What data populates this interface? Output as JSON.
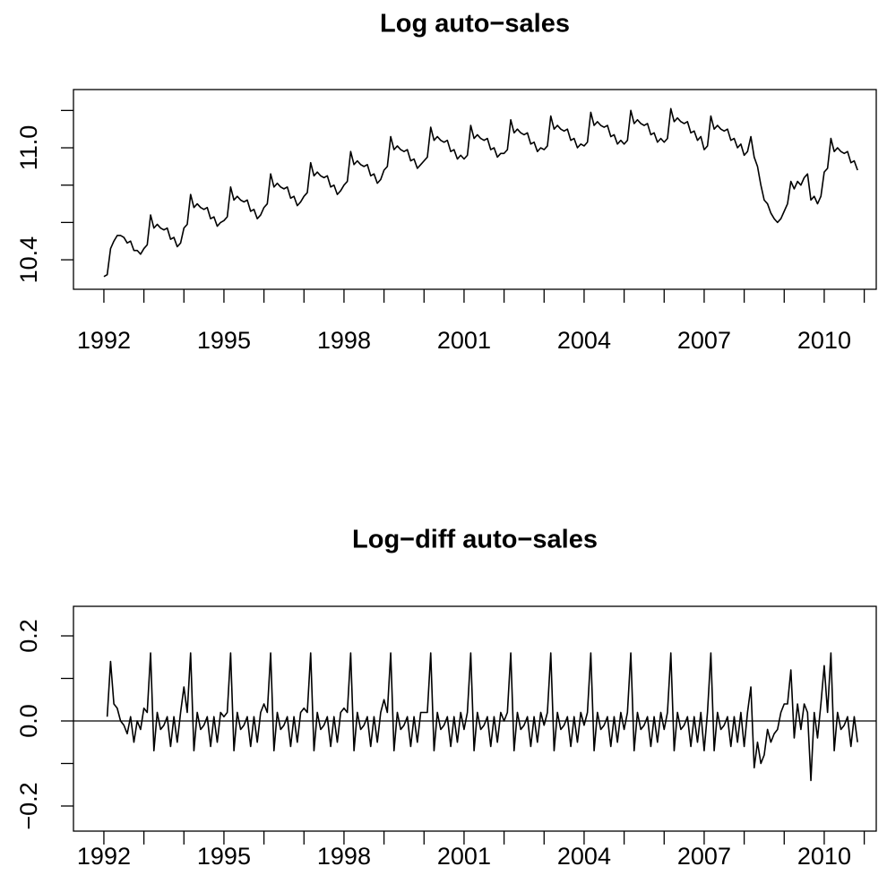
{
  "chart_data": [
    {
      "type": "line",
      "title": "Log auto−sales",
      "color": "#000000",
      "xlim": [
        1991.24,
        2011.3
      ],
      "xticks": [
        1992,
        1995,
        1998,
        2001,
        2004,
        2007,
        2010
      ],
      "xminorticks": [
        1993,
        1994,
        1996,
        1997,
        1999,
        2000,
        2002,
        2003,
        2005,
        2006,
        2008,
        2009,
        2011
      ],
      "ylim": [
        10.242,
        11.312
      ],
      "yticks": [
        {
          "value": 10.4,
          "label": "10.4"
        },
        {
          "value": 11,
          "label": "11.0"
        }
      ],
      "yminorticks": [
        10.6,
        10.8,
        11.2
      ],
      "x": [
        1992,
        1992.083,
        1992.167,
        1992.25,
        1992.333,
        1992.417,
        1992.5,
        1992.583,
        1992.667,
        1992.75,
        1992.833,
        1992.917,
        1993,
        1993.083,
        1993.167,
        1993.25,
        1993.333,
        1993.417,
        1993.5,
        1993.583,
        1993.667,
        1993.75,
        1993.833,
        1993.917,
        1994,
        1994.083,
        1994.167,
        1994.25,
        1994.333,
        1994.417,
        1994.5,
        1994.583,
        1994.667,
        1994.75,
        1994.833,
        1994.917,
        1995,
        1995.083,
        1995.167,
        1995.25,
        1995.333,
        1995.417,
        1995.5,
        1995.583,
        1995.667,
        1995.75,
        1995.833,
        1995.917,
        1996,
        1996.083,
        1996.167,
        1996.25,
        1996.333,
        1996.417,
        1996.5,
        1996.583,
        1996.667,
        1996.75,
        1996.833,
        1996.917,
        1997,
        1997.083,
        1997.167,
        1997.25,
        1997.333,
        1997.417,
        1997.5,
        1997.583,
        1997.667,
        1997.75,
        1997.833,
        1997.917,
        1998,
        1998.083,
        1998.167,
        1998.25,
        1998.333,
        1998.417,
        1998.5,
        1998.583,
        1998.667,
        1998.75,
        1998.833,
        1998.917,
        1999,
        1999.083,
        1999.167,
        1999.25,
        1999.333,
        1999.417,
        1999.5,
        1999.583,
        1999.667,
        1999.75,
        1999.833,
        1999.917,
        2000,
        2000.083,
        2000.167,
        2000.25,
        2000.333,
        2000.417,
        2000.5,
        2000.583,
        2000.667,
        2000.75,
        2000.833,
        2000.917,
        2001,
        2001.083,
        2001.167,
        2001.25,
        2001.333,
        2001.417,
        2001.5,
        2001.583,
        2001.667,
        2001.75,
        2001.833,
        2001.917,
        2002,
        2002.083,
        2002.167,
        2002.25,
        2002.333,
        2002.417,
        2002.5,
        2002.583,
        2002.667,
        2002.75,
        2002.833,
        2002.917,
        2003,
        2003.083,
        2003.167,
        2003.25,
        2003.333,
        2003.417,
        2003.5,
        2003.583,
        2003.667,
        2003.75,
        2003.833,
        2003.917,
        2004,
        2004.083,
        2004.167,
        2004.25,
        2004.333,
        2004.417,
        2004.5,
        2004.583,
        2004.667,
        2004.75,
        2004.833,
        2004.917,
        2005,
        2005.083,
        2005.167,
        2005.25,
        2005.333,
        2005.417,
        2005.5,
        2005.583,
        2005.667,
        2005.75,
        2005.833,
        2005.917,
        2006,
        2006.083,
        2006.167,
        2006.25,
        2006.333,
        2006.417,
        2006.5,
        2006.583,
        2006.667,
        2006.75,
        2006.833,
        2006.917,
        2007,
        2007.083,
        2007.167,
        2007.25,
        2007.333,
        2007.417,
        2007.5,
        2007.583,
        2007.667,
        2007.75,
        2007.833,
        2007.917,
        2008,
        2008.083,
        2008.167,
        2008.25,
        2008.333,
        2008.417,
        2008.5,
        2008.583,
        2008.667,
        2008.75,
        2008.833,
        2008.917,
        2009,
        2009.083,
        2009.167,
        2009.25,
        2009.333,
        2009.417,
        2009.5,
        2009.583,
        2009.667,
        2009.75,
        2009.833,
        2009.917,
        2010,
        2010.083,
        2010.167,
        2010.25,
        2010.333,
        2010.417,
        2010.5,
        2010.583,
        2010.667,
        2010.75,
        2010.833
      ],
      "values": [
        10.31,
        10.32,
        10.46,
        10.5,
        10.53,
        10.53,
        10.52,
        10.49,
        10.5,
        10.45,
        10.45,
        10.43,
        10.46,
        10.48,
        10.64,
        10.57,
        10.59,
        10.57,
        10.56,
        10.57,
        10.51,
        10.52,
        10.47,
        10.49,
        10.57,
        10.59,
        10.75,
        10.68,
        10.7,
        10.68,
        10.67,
        10.68,
        10.62,
        10.63,
        10.58,
        10.6,
        10.61,
        10.63,
        10.79,
        10.72,
        10.74,
        10.72,
        10.71,
        10.72,
        10.66,
        10.67,
        10.62,
        10.64,
        10.68,
        10.7,
        10.86,
        10.79,
        10.81,
        10.79,
        10.78,
        10.79,
        10.73,
        10.74,
        10.69,
        10.71,
        10.74,
        10.76,
        10.92,
        10.85,
        10.87,
        10.85,
        10.84,
        10.85,
        10.79,
        10.8,
        10.75,
        10.77,
        10.8,
        10.82,
        10.98,
        10.91,
        10.93,
        10.91,
        10.9,
        10.91,
        10.85,
        10.86,
        10.81,
        10.83,
        10.88,
        10.9,
        11.06,
        10.99,
        11.01,
        10.99,
        10.98,
        10.99,
        10.93,
        10.94,
        10.89,
        10.91,
        10.93,
        10.95,
        11.11,
        11.04,
        11.06,
        11.04,
        11.03,
        11.04,
        10.98,
        10.99,
        10.94,
        10.96,
        10.94,
        10.96,
        11.12,
        11.05,
        11.07,
        11.05,
        11.04,
        11.05,
        10.99,
        11,
        10.95,
        10.97,
        10.97,
        10.99,
        11.15,
        11.08,
        11.1,
        11.08,
        11.07,
        11.08,
        11.02,
        11.03,
        10.98,
        11,
        10.99,
        11.01,
        11.17,
        11.1,
        11.12,
        11.1,
        11.09,
        11.1,
        11.04,
        11.05,
        11,
        11.02,
        11.01,
        11.03,
        11.19,
        11.12,
        11.14,
        11.12,
        11.11,
        11.12,
        11.06,
        11.07,
        11.02,
        11.04,
        11.02,
        11.04,
        11.2,
        11.13,
        11.15,
        11.13,
        11.12,
        11.13,
        11.07,
        11.08,
        11.03,
        11.05,
        11.03,
        11.05,
        11.21,
        11.14,
        11.16,
        11.14,
        11.13,
        11.14,
        11.08,
        11.09,
        11.04,
        11.06,
        10.99,
        11.01,
        11.17,
        11.1,
        11.12,
        11.1,
        11.09,
        11.1,
        11.04,
        11.05,
        11,
        11.02,
        10.96,
        10.98,
        11.06,
        10.95,
        10.9,
        10.8,
        10.72,
        10.7,
        10.65,
        10.62,
        10.6,
        10.62,
        10.66,
        10.7,
        10.82,
        10.78,
        10.82,
        10.8,
        10.84,
        10.86,
        10.72,
        10.74,
        10.7,
        10.74,
        10.87,
        10.89,
        11.05,
        10.98,
        11,
        10.98,
        10.97,
        10.98,
        10.92,
        10.93,
        10.88
      ]
    },
    {
      "type": "line",
      "title": "Log−diff auto−sales",
      "color": "#000000",
      "hline": 0,
      "xlim": [
        1991.24,
        2011.3
      ],
      "xticks": [
        1992,
        1995,
        1998,
        2001,
        2004,
        2007,
        2010
      ],
      "xminorticks": [
        1993,
        1994,
        1996,
        1997,
        1999,
        2000,
        2002,
        2003,
        2005,
        2006,
        2008,
        2009,
        2011
      ],
      "ylim": [
        -0.259,
        0.2695
      ],
      "yticks": [
        {
          "value": -0.2,
          "label": "−0.2"
        },
        {
          "value": 0,
          "label": "0.0"
        },
        0.2
      ],
      "yminorticks": [
        -0.1,
        0.1
      ],
      "x": [
        1992,
        1992.083,
        1992.167,
        1992.25,
        1992.333,
        1992.417,
        1992.5,
        1992.583,
        1992.667,
        1992.75,
        1992.833,
        1992.917,
        1993,
        1993.083,
        1993.167,
        1993.25,
        1993.333,
        1993.417,
        1993.5,
        1993.583,
        1993.667,
        1993.75,
        1993.833,
        1993.917,
        1994,
        1994.083,
        1994.167,
        1994.25,
        1994.333,
        1994.417,
        1994.5,
        1994.583,
        1994.667,
        1994.75,
        1994.833,
        1994.917,
        1995,
        1995.083,
        1995.167,
        1995.25,
        1995.333,
        1995.417,
        1995.5,
        1995.583,
        1995.667,
        1995.75,
        1995.833,
        1995.917,
        1996,
        1996.083,
        1996.167,
        1996.25,
        1996.333,
        1996.417,
        1996.5,
        1996.583,
        1996.667,
        1996.75,
        1996.833,
        1996.917,
        1997,
        1997.083,
        1997.167,
        1997.25,
        1997.333,
        1997.417,
        1997.5,
        1997.583,
        1997.667,
        1997.75,
        1997.833,
        1997.917,
        1998,
        1998.083,
        1998.167,
        1998.25,
        1998.333,
        1998.417,
        1998.5,
        1998.583,
        1998.667,
        1998.75,
        1998.833,
        1998.917,
        1999,
        1999.083,
        1999.167,
        1999.25,
        1999.333,
        1999.417,
        1999.5,
        1999.583,
        1999.667,
        1999.75,
        1999.833,
        1999.917,
        2000,
        2000.083,
        2000.167,
        2000.25,
        2000.333,
        2000.417,
        2000.5,
        2000.583,
        2000.667,
        2000.75,
        2000.833,
        2000.917,
        2001,
        2001.083,
        2001.167,
        2001.25,
        2001.333,
        2001.417,
        2001.5,
        2001.583,
        2001.667,
        2001.75,
        2001.833,
        2001.917,
        2002,
        2002.083,
        2002.167,
        2002.25,
        2002.333,
        2002.417,
        2002.5,
        2002.583,
        2002.667,
        2002.75,
        2002.833,
        2002.917,
        2003,
        2003.083,
        2003.167,
        2003.25,
        2003.333,
        2003.417,
        2003.5,
        2003.583,
        2003.667,
        2003.75,
        2003.833,
        2003.917,
        2004,
        2004.083,
        2004.167,
        2004.25,
        2004.333,
        2004.417,
        2004.5,
        2004.583,
        2004.667,
        2004.75,
        2004.833,
        2004.917,
        2005,
        2005.083,
        2005.167,
        2005.25,
        2005.333,
        2005.417,
        2005.5,
        2005.583,
        2005.667,
        2005.75,
        2005.833,
        2005.917,
        2006,
        2006.083,
        2006.167,
        2006.25,
        2006.333,
        2006.417,
        2006.5,
        2006.583,
        2006.667,
        2006.75,
        2006.833,
        2006.917,
        2007,
        2007.083,
        2007.167,
        2007.25,
        2007.333,
        2007.417,
        2007.5,
        2007.583,
        2007.667,
        2007.75,
        2007.833,
        2007.917,
        2008,
        2008.083,
        2008.167,
        2008.25,
        2008.333,
        2008.417,
        2008.5,
        2008.583,
        2008.667,
        2008.75,
        2008.833,
        2008.917,
        2009,
        2009.083,
        2009.167,
        2009.25,
        2009.333,
        2009.417,
        2009.5,
        2009.583,
        2009.667,
        2009.75,
        2009.833,
        2009.917,
        2010,
        2010.083,
        2010.167,
        2010.25,
        2010.333,
        2010.417,
        2010.5,
        2010.583,
        2010.667,
        2010.75,
        2010.833
      ],
      "values": [
        null,
        0.01,
        0.14,
        0.04,
        0.03,
        0,
        -0.01,
        -0.03,
        0.01,
        -0.05,
        0,
        -0.02,
        0.03,
        0.02,
        0.16,
        -0.07,
        0.02,
        -0.02,
        -0.01,
        0.01,
        -0.06,
        0.01,
        -0.05,
        0.02,
        0.08,
        0.02,
        0.16,
        -0.07,
        0.02,
        -0.02,
        -0.01,
        0.01,
        -0.06,
        0.01,
        -0.05,
        0.02,
        0.01,
        0.02,
        0.16,
        -0.07,
        0.02,
        -0.02,
        -0.01,
        0.01,
        -0.06,
        0.01,
        -0.05,
        0.02,
        0.04,
        0.02,
        0.16,
        -0.07,
        0.02,
        -0.02,
        -0.01,
        0.01,
        -0.06,
        0.01,
        -0.05,
        0.02,
        0.03,
        0.02,
        0.16,
        -0.07,
        0.02,
        -0.02,
        -0.01,
        0.01,
        -0.06,
        0.01,
        -0.05,
        0.02,
        0.03,
        0.02,
        0.16,
        -0.07,
        0.02,
        -0.02,
        -0.01,
        0.01,
        -0.06,
        0.01,
        -0.05,
        0.02,
        0.05,
        0.02,
        0.16,
        -0.07,
        0.02,
        -0.02,
        -0.01,
        0.01,
        -0.06,
        0.01,
        -0.05,
        0.02,
        0.02,
        0.02,
        0.16,
        -0.07,
        0.02,
        -0.02,
        -0.01,
        0.01,
        -0.06,
        0.01,
        -0.05,
        0.02,
        -0.02,
        0.02,
        0.16,
        -0.07,
        0.02,
        -0.02,
        -0.01,
        0.01,
        -0.06,
        0.01,
        -0.05,
        0.02,
        0,
        0.02,
        0.16,
        -0.07,
        0.02,
        -0.02,
        -0.01,
        0.01,
        -0.06,
        0.01,
        -0.05,
        0.02,
        -0.01,
        0.02,
        0.16,
        -0.07,
        0.02,
        -0.02,
        -0.01,
        0.01,
        -0.06,
        0.01,
        -0.05,
        0.02,
        -0.01,
        0.02,
        0.16,
        -0.07,
        0.02,
        -0.02,
        -0.01,
        0.01,
        -0.06,
        0.01,
        -0.05,
        0.02,
        -0.02,
        0.02,
        0.16,
        -0.07,
        0.02,
        -0.02,
        -0.01,
        0.01,
        -0.06,
        0.01,
        -0.05,
        0.02,
        -0.02,
        0.02,
        0.16,
        -0.07,
        0.02,
        -0.02,
        -0.01,
        0.01,
        -0.06,
        0.01,
        -0.05,
        0.02,
        -0.07,
        0.02,
        0.16,
        -0.07,
        0.02,
        -0.02,
        -0.01,
        0.01,
        -0.06,
        0.01,
        -0.05,
        0.02,
        -0.06,
        0.02,
        0.08,
        -0.11,
        -0.05,
        -0.1,
        -0.08,
        -0.02,
        -0.05,
        -0.03,
        -0.02,
        0.02,
        0.04,
        0.04,
        0.12,
        -0.04,
        0.04,
        -0.02,
        0.04,
        0.02,
        -0.14,
        0.02,
        -0.04,
        0.04,
        0.13,
        0.02,
        0.16,
        -0.07,
        0.02,
        -0.02,
        -0.01,
        0.01,
        -0.06,
        0.01,
        -0.05
      ]
    }
  ]
}
